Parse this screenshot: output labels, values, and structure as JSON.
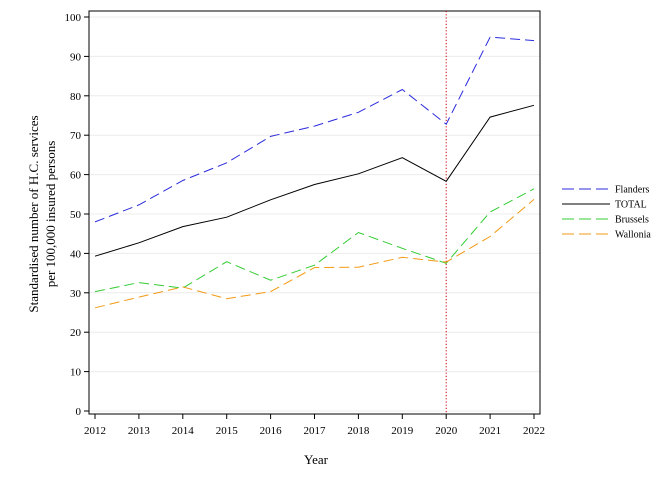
{
  "chart_data": {
    "type": "line",
    "title": "",
    "xlabel": "Year",
    "ylabel_lines": [
      "Standardised number of H.C. services",
      "per 100,000 insured persons"
    ],
    "x": [
      2012,
      2013,
      2014,
      2015,
      2016,
      2017,
      2018,
      2019,
      2020,
      2021,
      2022
    ],
    "xlim": [
      2012,
      2022
    ],
    "ylim": [
      0,
      100
    ],
    "yticks": [
      0,
      10,
      20,
      30,
      40,
      50,
      60,
      70,
      80,
      90,
      100
    ],
    "grid": "horizontal",
    "legend_position": "right",
    "reference_line": {
      "x": 2020,
      "color": "#cc0000",
      "style": "dotted"
    },
    "series": [
      {
        "name": "Flanders",
        "color": "#2b2bdc",
        "dash": "dashed",
        "values": [
          48.0,
          52.3,
          58.5,
          63.0,
          69.7,
          72.3,
          75.8,
          81.6,
          72.8,
          94.9,
          94.0
        ]
      },
      {
        "name": "TOTAL",
        "color": "#000000",
        "dash": "solid",
        "values": [
          39.3,
          42.7,
          46.8,
          49.2,
          53.6,
          57.5,
          60.2,
          64.3,
          58.3,
          74.6,
          77.6
        ]
      },
      {
        "name": "Brussels",
        "color": "#33cc33",
        "dash": "dashed",
        "values": [
          30.3,
          32.6,
          31.2,
          37.9,
          33.2,
          37.0,
          45.3,
          41.3,
          37.5,
          50.5,
          56.4
        ]
      },
      {
        "name": "Wallonia",
        "color": "#f29a14",
        "dash": "dashed",
        "values": [
          26.2,
          28.9,
          31.5,
          28.5,
          30.3,
          36.4,
          36.5,
          39.0,
          37.8,
          44.3,
          53.7
        ]
      }
    ]
  }
}
